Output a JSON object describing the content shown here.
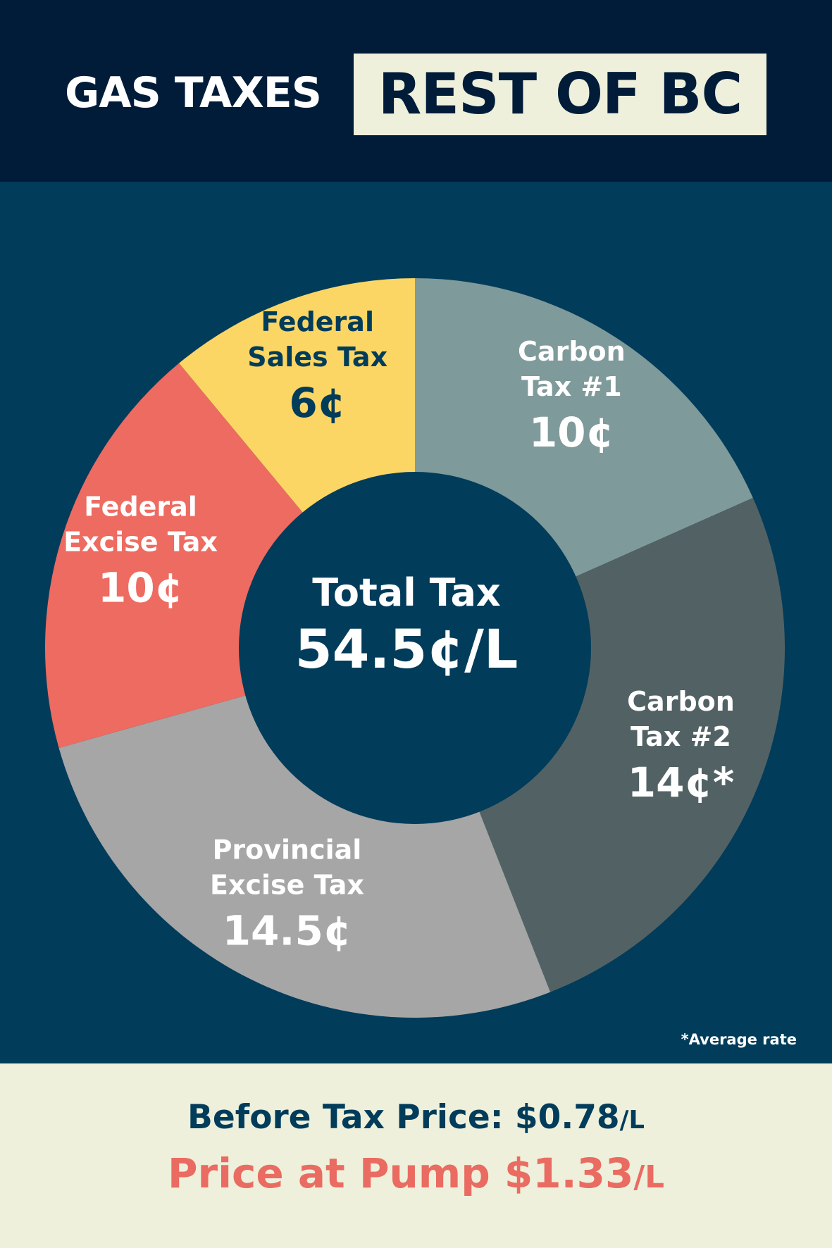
{
  "header": {
    "title": "GAS TAXES",
    "region": "REST OF BC"
  },
  "colors": {
    "header_bg": "#001c38",
    "panel_bg": "#013c5a",
    "footer_bg": "#eef0db",
    "accent_red": "#ea6b61"
  },
  "chart_data": {
    "type": "pie",
    "variant": "donut",
    "unit": "¢/L",
    "center_label": "Total Tax",
    "center_value": "54.5¢/L",
    "total": 54.5,
    "footnote": "*Average rate",
    "series": [
      {
        "name_line1": "Carbon",
        "name_line2": "Tax #1",
        "value": 10,
        "display": "10¢",
        "color": "#7f9a9b",
        "text_color": "#ffffff"
      },
      {
        "name_line1": "Carbon",
        "name_line2": "Tax #2",
        "value": 14,
        "display": "14¢*",
        "color": "#526264",
        "text_color": "#ffffff"
      },
      {
        "name_line1": "Provincial",
        "name_line2": "Excise Tax",
        "value": 14.5,
        "display": "14.5¢",
        "color": "#a6a6a6",
        "text_color": "#ffffff"
      },
      {
        "name_line1": "Federal",
        "name_line2": "Excise Tax",
        "value": 10,
        "display": "10¢",
        "color": "#ed6b61",
        "text_color": "#ffffff"
      },
      {
        "name_line1": "Federal",
        "name_line2": "Sales Tax",
        "value": 6,
        "display": "6¢",
        "color": "#fcd664",
        "text_color": "#013c5a"
      }
    ]
  },
  "footer": {
    "before_label": "Before Tax Price: $0.78",
    "before_unit": "/L",
    "pump_label": "Price at Pump $1.33",
    "pump_unit": "/L"
  }
}
